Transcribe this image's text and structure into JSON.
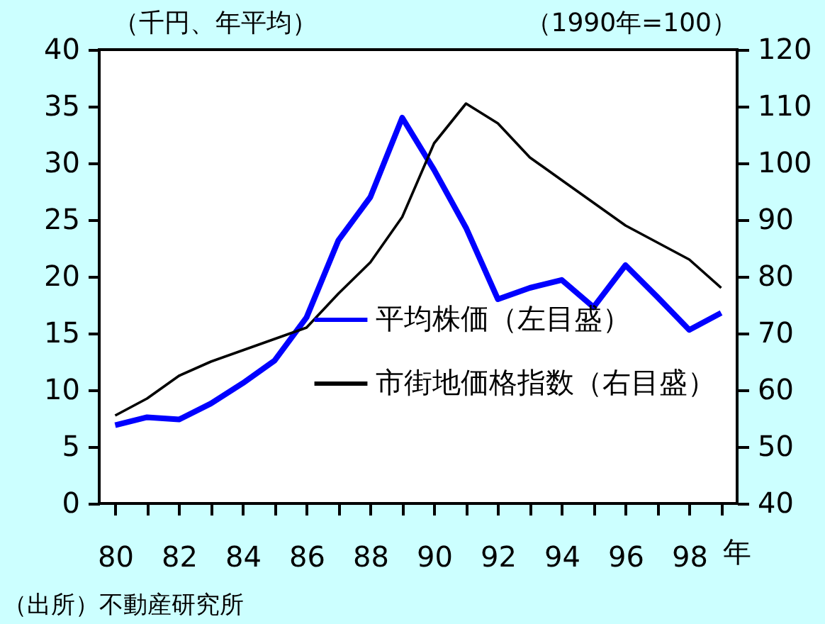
{
  "chart_data": {
    "type": "line",
    "x": [
      80,
      81,
      82,
      83,
      84,
      85,
      86,
      87,
      88,
      89,
      90,
      91,
      92,
      93,
      94,
      95,
      96,
      97,
      98,
      99
    ],
    "series": [
      {
        "name": "平均株価（左目盛）",
        "color": "#0000ff",
        "values": [
          6.9,
          7.6,
          7.4,
          8.8,
          10.6,
          12.6,
          16.4,
          23.2,
          27,
          34,
          29.4,
          24.3,
          18,
          19,
          19.7,
          17.3,
          21,
          18.2,
          15.3,
          16.8
        ]
      },
      {
        "name": "市街地価格指数（右目盛）",
        "color": "#000000",
        "axis": "y2",
        "values": [
          55.5,
          58.5,
          62.5,
          65,
          67,
          69,
          71,
          77,
          82.5,
          90.5,
          103.5,
          110.5,
          107,
          101,
          97,
          93,
          89,
          86,
          83,
          78
        ]
      }
    ],
    "xlabel": "年",
    "ylabel": "（千円、年平均）",
    "y2label": "（1990年=100）",
    "xlim": [
      79.5,
      99.5
    ],
    "xticks": [
      80,
      {
        "value": 81,
        "label": null
      },
      82,
      {
        "value": 83,
        "label": null
      },
      84,
      {
        "value": 85,
        "label": null
      },
      86,
      {
        "value": 87,
        "label": null
      },
      88,
      {
        "value": 89,
        "label": null
      },
      90,
      {
        "value": 91,
        "label": null
      },
      92,
      {
        "value": 93,
        "label": null
      },
      94,
      {
        "value": 95,
        "label": null
      },
      96,
      {
        "value": 97,
        "label": null
      },
      98,
      {
        "value": 99,
        "label": null
      }
    ],
    "ylim": [
      0,
      40
    ],
    "yticks": [
      0,
      5,
      10,
      15,
      20,
      25,
      30,
      35,
      40
    ],
    "y2lim": [
      40,
      120
    ],
    "y2ticks": [
      40,
      50,
      60,
      70,
      80,
      90,
      100,
      110,
      120
    ],
    "annotations": [
      "（出所）不動産研究所"
    ],
    "legend": "bottom right",
    "grid": false,
    "marker": "none",
    "line_style": "solid"
  }
}
